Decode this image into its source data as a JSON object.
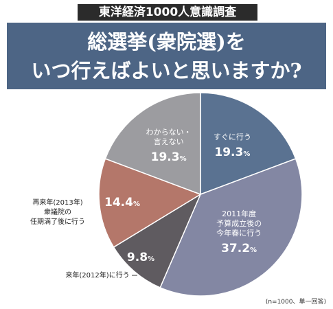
{
  "header": {
    "survey_tag": "東洋経済1000人意識調査",
    "title_line1": "総選挙(衆院選)を",
    "title_line2": "いつ行えばよいと思いますか?"
  },
  "note": "(n=1000、単一回答)",
  "chart_data": {
    "type": "pie",
    "title": "総選挙(衆院選)をいつ行えばよいと思いますか?",
    "unit": "%",
    "slices": [
      {
        "label": [
          "すぐに行う"
        ],
        "value": 19.3,
        "display": "19.3",
        "color": "#5a7291",
        "label_inside": true
      },
      {
        "label": [
          "2011年度",
          "予算成立後の",
          "今年春に行う"
        ],
        "value": 37.2,
        "display": "37.2",
        "color": "#8387a3",
        "label_inside": true
      },
      {
        "label": [
          "来年(2012年)に行う"
        ],
        "value": 9.8,
        "display": "9.8",
        "color": "#5f5b60",
        "label_inside": false
      },
      {
        "label": [
          "再来年(2013年)",
          "衆議院の",
          "任期満了後に行う"
        ],
        "value": 14.4,
        "display": "14.4",
        "color": "#b4776a",
        "label_inside": false
      },
      {
        "label": [
          "わからない・",
          "言えない"
        ],
        "value": 19.3,
        "display": "19.3",
        "color": "#9c9ca0",
        "label_inside": true
      }
    ]
  }
}
